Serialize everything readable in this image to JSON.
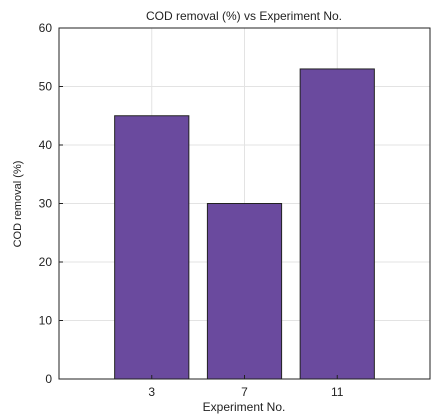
{
  "chart_data": {
    "type": "bar",
    "title": "COD removal (%) vs Experiment No.",
    "xlabel": "Experiment No.",
    "ylabel": "COD removal (%)",
    "categories": [
      "3",
      "7",
      "11"
    ],
    "values": [
      45,
      30,
      53
    ],
    "ylim": [
      0,
      60
    ],
    "yticks": [
      0,
      10,
      20,
      30,
      40,
      50,
      60
    ],
    "grid": true,
    "legend": "none",
    "colors": {
      "bar_fill": "#6a4a9e",
      "bar_stroke": "#222222",
      "grid": "#e3e3e3",
      "axis": "#222222"
    }
  }
}
